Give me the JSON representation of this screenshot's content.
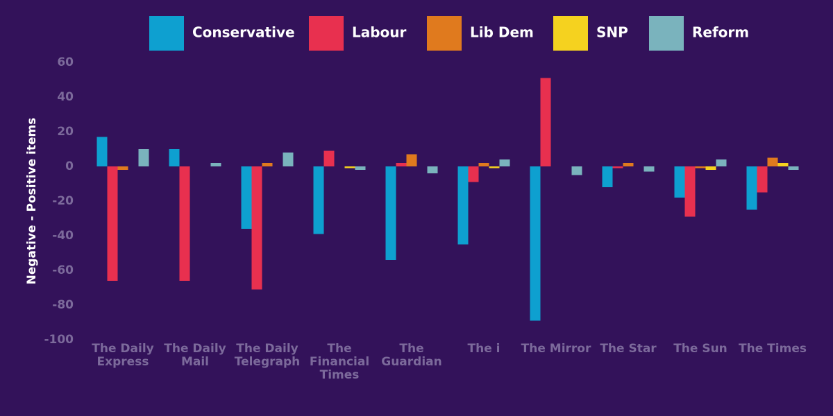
{
  "chart_data": {
    "type": "bar",
    "y_label": "Negative - Positive items",
    "categories": [
      "The Daily\nExpress",
      "The Daily\nMail",
      "The Daily\nTelegraph",
      "The\nFinancial\nTimes",
      "The\nGuardian",
      "The i",
      "The Mirror",
      "The Star",
      "The Sun",
      "The Times"
    ],
    "series": [
      {
        "name": "Conservative",
        "color": "#0ea0d0",
        "values": [
          17,
          10,
          -36,
          -39,
          -54,
          -45,
          -89,
          -12,
          -18,
          -25
        ]
      },
      {
        "name": "Labour",
        "color": "#e8304f",
        "values": [
          -66,
          -66,
          -71,
          9,
          2,
          -9,
          51,
          -1,
          -29,
          -15
        ]
      },
      {
        "name": "Lib Dem",
        "color": "#e07a1e",
        "values": [
          -2,
          0,
          2,
          0,
          7,
          2,
          0,
          2,
          -1,
          5
        ]
      },
      {
        "name": "SNP",
        "color": "#f5d21f",
        "values": [
          0,
          0,
          0,
          -1,
          0,
          -1,
          0,
          0,
          -2,
          2
        ]
      },
      {
        "name": "Reform",
        "color": "#7ab3bd",
        "values": [
          10,
          2,
          8,
          -2,
          -4,
          4,
          -5,
          -3,
          4,
          -2
        ]
      }
    ],
    "ylim": [
      -100,
      60
    ],
    "yticks": [
      -100,
      -80,
      -60,
      -40,
      -20,
      0,
      20,
      40,
      60
    ]
  }
}
